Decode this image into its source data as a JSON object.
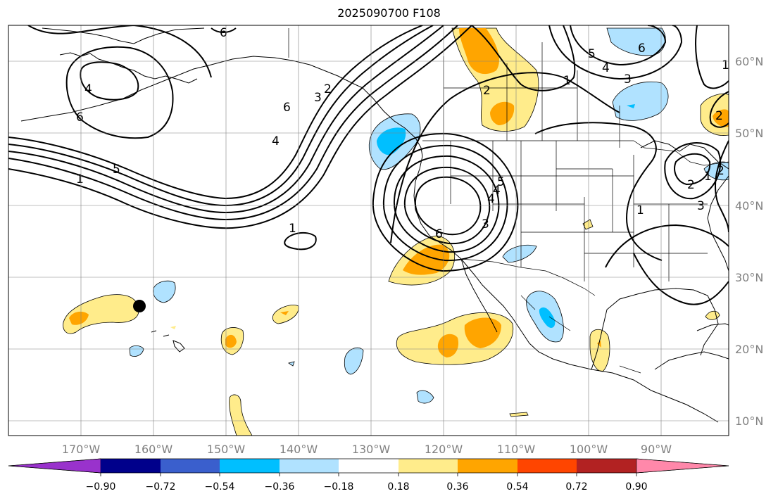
{
  "title": "2025090700 F108",
  "map": {
    "projection": "cylindrical",
    "lon_range": [
      -180,
      -80
    ],
    "lat_range": [
      8,
      65
    ],
    "grid": true,
    "lon_labels": [
      "170°W",
      "160°W",
      "150°W",
      "140°W",
      "130°W",
      "120°W",
      "110°W",
      "100°W",
      "90°W"
    ],
    "lat_labels": [
      "60°N",
      "50°N",
      "40°N",
      "30°N",
      "20°N",
      "10°N"
    ],
    "contour_labels": [
      "6",
      "4",
      "6",
      "1",
      "5",
      "6",
      "4",
      "3",
      "2",
      "6",
      "1",
      "5",
      "4",
      "3",
      "2",
      "1",
      "2",
      "6",
      "4",
      "3",
      "4",
      "5",
      "1",
      "2",
      "3",
      "1",
      "2",
      "1"
    ],
    "marker": {
      "lon": -162,
      "lat": 26,
      "color": "#000000"
    }
  },
  "colorbar": {
    "ticks": [
      "−0.90",
      "−0.72",
      "−0.54",
      "−0.36",
      "−0.18",
      "0.18",
      "0.36",
      "0.54",
      "0.72",
      "0.90"
    ],
    "colors": [
      "#9932CC",
      "#00008B",
      "#3A5FCD",
      "#00BFFF",
      "#B0E2FF",
      "#FFFFFF",
      "#FFEC8B",
      "#FFA500",
      "#FF4500",
      "#B22222",
      "#FF88AA"
    ]
  }
}
